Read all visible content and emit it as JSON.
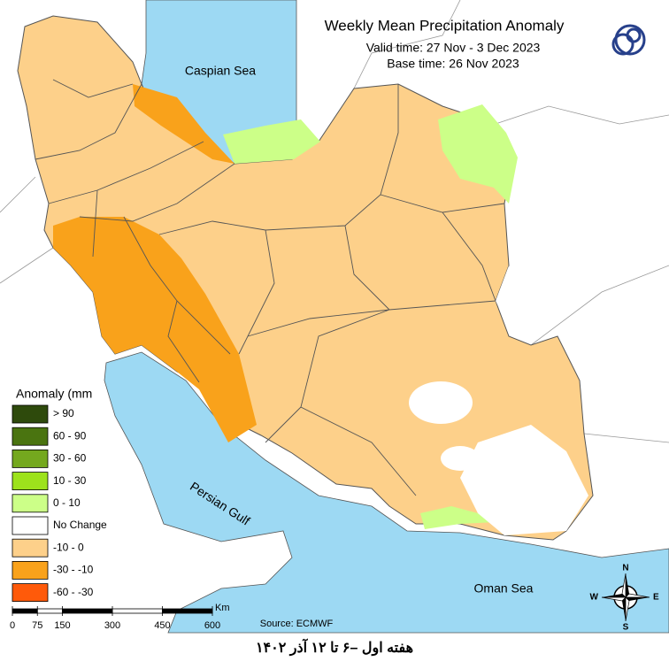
{
  "header": {
    "title": "Weekly Mean Precipitation Anomaly",
    "valid_time": "Valid time: 27 Nov - 3 Dec 2023",
    "base_time": "Base time: 26 Nov 2023"
  },
  "labels": {
    "caspian": "Caspian Sea",
    "persian_gulf": "Persian Gulf",
    "oman_sea": "Oman Sea"
  },
  "legend": {
    "title": "Anomaly (mm",
    "items": [
      {
        "label": "> 90",
        "color": "#2e4a0c"
      },
      {
        "label": "60 - 90",
        "color": "#4a7410"
      },
      {
        "label": "30 - 60",
        "color": "#74a81e"
      },
      {
        "label": "10 - 30",
        "color": "#9de21c"
      },
      {
        "label": "0 - 10",
        "color": "#ccff88"
      },
      {
        "label": "No Change",
        "color": "#ffffff"
      },
      {
        "label": "-10 - 0",
        "color": "#fdd08a"
      },
      {
        "label": "-30 - -10",
        "color": "#f9a21b"
      },
      {
        "label": "-60 - -30",
        "color": "#ff5a0a"
      }
    ]
  },
  "scale": {
    "unit": "Km",
    "ticks": [
      0,
      75,
      150,
      300,
      450,
      600
    ]
  },
  "compass": {
    "n": "N",
    "e": "E",
    "s": "S",
    "w": "W"
  },
  "source": "Source: ECMWF",
  "footer": "هفته اول –۶ تا ۱۲ آذر ۱۴۰۲"
}
